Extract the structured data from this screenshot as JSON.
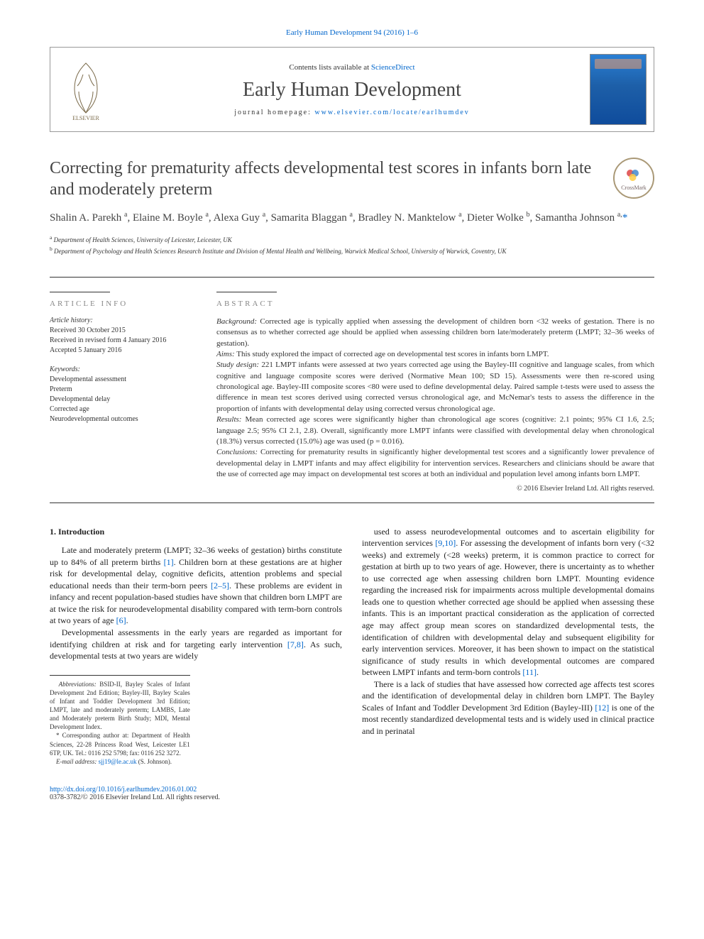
{
  "journal_ref": {
    "text": "Early Human Development 94 (2016) 1–6",
    "color": "#0066cc"
  },
  "header": {
    "contents_pre": "Contents lists available at ",
    "contents_link": "ScienceDirect",
    "journal": "Early Human Development",
    "homepage_pre": "journal homepage: ",
    "homepage_link": "www.elsevier.com/locate/earlhumdev",
    "link_color": "#0066cc"
  },
  "title": "Correcting for prematurity affects developmental test scores in infants born late and moderately preterm",
  "crossmark_label": "CrossMark",
  "authors_html": "Shalin A. Parekh <sup>a</sup>, Elaine M. Boyle <sup>a</sup>, Alexa Guy <sup>a</sup>, Samarita Blaggan <sup>a</sup>, Bradley N. Manktelow <sup>a</sup>, Dieter Wolke <sup>b</sup>, Samantha Johnson <sup>a,</sup><span class='star'>*</span>",
  "affiliations": [
    {
      "sup": "a",
      "text": "Department of Health Sciences, University of Leicester, Leicester, UK"
    },
    {
      "sup": "b",
      "text": "Department of Psychology and Health Sciences Research Institute and Division of Mental Health and Wellbeing, Warwick Medical School, University of Warwick, Coventry, UK"
    }
  ],
  "article_info": {
    "heading": "ARTICLE INFO",
    "history_label": "Article history:",
    "history": [
      "Received 30 October 2015",
      "Received in revised form 4 January 2016",
      "Accepted 5 January 2016"
    ],
    "keywords_label": "Keywords:",
    "keywords": [
      "Developmental assessment",
      "Preterm",
      "Developmental delay",
      "Corrected age",
      "Neurodevelopmental outcomes"
    ]
  },
  "abstract": {
    "heading": "ABSTRACT",
    "sections": [
      {
        "label": "Background:",
        "text": " Corrected age is typically applied when assessing the development of children born <32 weeks of gestation. There is no consensus as to whether corrected age should be applied when assessing children born late/moderately preterm (LMPT; 32–36 weeks of gestation)."
      },
      {
        "label": "Aims:",
        "text": " This study explored the impact of corrected age on developmental test scores in infants born LMPT."
      },
      {
        "label": "Study design:",
        "text": " 221 LMPT infants were assessed at two years corrected age using the Bayley-III cognitive and language scales, from which cognitive and language composite scores were derived (Normative Mean 100; SD 15). Assessments were then re-scored using chronological age. Bayley-III composite scores <80 were used to define developmental delay. Paired sample t-tests were used to assess the difference in mean test scores derived using corrected versus chronological age, and McNemar's tests to assess the difference in the proportion of infants with developmental delay using corrected versus chronological age."
      },
      {
        "label": "Results:",
        "text": " Mean corrected age scores were significantly higher than chronological age scores (cognitive: 2.1 points; 95% CI 1.6, 2.5; language 2.5; 95% CI 2.1, 2.8). Overall, significantly more LMPT infants were classified with developmental delay when chronological (18.3%) versus corrected (15.0%) age was used (p = 0.016)."
      },
      {
        "label": "Conclusions:",
        "text": " Correcting for prematurity results in significantly higher developmental test scores and a significantly lower prevalence of developmental delay in LMPT infants and may affect eligibility for intervention services. Researchers and clinicians should be aware that the use of corrected age may impact on developmental test scores at both an individual and population level among infants born LMPT."
      }
    ],
    "copyright": "© 2016 Elsevier Ireland Ltd. All rights reserved."
  },
  "intro": {
    "heading": "1. Introduction",
    "p1": "Late and moderately preterm (LMPT; 32–36 weeks of gestation) births constitute up to 84% of all preterm births [1]. Children born at these gestations are at higher risk for developmental delay, cognitive deficits, attention problems and special educational needs than their term-born peers [2–5]. These problems are evident in infancy and recent population-based studies have shown that children born LMPT are at twice the risk for neurodevelopmental disability compared with term-born controls at two years of age [6].",
    "p2": "Developmental assessments in the early years are regarded as important for identifying children at risk and for targeting early intervention [7,8]. As such, developmental tests at two years are widely",
    "p3": "used to assess neurodevelopmental outcomes and to ascertain eligibility for intervention services [9,10]. For assessing the development of infants born very (<32 weeks) and extremely (<28 weeks) preterm, it is common practice to correct for gestation at birth up to two years of age. However, there is uncertainty as to whether to use corrected age when assessing children born LMPT. Mounting evidence regarding the increased risk for impairments across multiple developmental domains leads one to question whether corrected age should be applied when assessing these infants. This is an important practical consideration as the application of corrected age may affect group mean scores on standardized developmental tests, the identification of children with developmental delay and subsequent eligibility for early intervention services. Moreover, it has been shown to impact on the statistical significance of study results in which developmental outcomes are compared between LMPT infants and term-born controls [11].",
    "p4": "There is a lack of studies that have assessed how corrected age affects test scores and the identification of developmental delay in children born LMPT. The Bayley Scales of Infant and Toddler Development 3rd Edition (Bayley-III) [12] is one of the most recently standardized developmental tests and is widely used in clinical practice and in perinatal",
    "refs": {
      "1": "[1]",
      "2_5": "[2–5]",
      "6": "[6]",
      "7_8": "[7,8]",
      "9_10": "[9,10]",
      "11": "[11]",
      "12": "[12]"
    }
  },
  "footnotes": {
    "abbrev_label": "Abbreviations:",
    "abbrev": " BSID-II, Bayley Scales of Infant Development 2nd Edition; Bayley-III, Bayley Scales of Infant and Toddler Development 3rd Edition; LMPT, late and moderately preterm; LAMBS, Late and Moderately preterm Birth Study; MDI, Mental Development Index.",
    "corr_pre": "* Corresponding author at: Department of Health Sciences, 22-28 Princess Road West, Leicester LE1 6TP, UK. Tel.: 0116 252 5798; fax: 0116 252 3272.",
    "email_label": "E-mail address:",
    "email": "sjj19@le.ac.uk",
    "email_suffix": " (S. Johnson)."
  },
  "footer": {
    "doi": "http://dx.doi.org/10.1016/j.earlhumdev.2016.01.002",
    "copyright": "0378-3782/© 2016 Elsevier Ireland Ltd. All rights reserved."
  },
  "colors": {
    "link": "#0066cc",
    "text": "#333333",
    "rule": "#333333"
  }
}
